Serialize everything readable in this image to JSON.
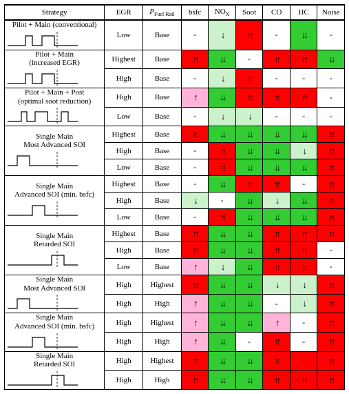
{
  "colors": {
    "red": "#ff0000",
    "green": "#33cc33",
    "ltgreen": "#ccf2cc",
    "pink": "#ffb3d9",
    "white": "#ffffff"
  },
  "headers": [
    "Strategy",
    "EGR",
    "P_FuelRail",
    "bsfc",
    "NOx",
    "Soot",
    "CO",
    "HC",
    "Noise"
  ],
  "groups": [
    {
      "label": "Pilot + Main (conventional)",
      "pulses": "pm",
      "rows": [
        {
          "egr": "Low",
          "prail": "Base",
          "cells": [
            [
              "-",
              "white"
            ],
            [
              "d1",
              "ltgreen"
            ],
            [
              "u2",
              "red"
            ],
            [
              "-",
              "white"
            ],
            [
              "d2",
              "green"
            ],
            [
              "-",
              "white"
            ]
          ]
        }
      ]
    },
    {
      "label": "Pilot + Main\n(increased EGR)",
      "pulses": "pm",
      "rows": [
        {
          "egr": "Highest",
          "prail": "Base",
          "cells": [
            [
              "u2",
              "red"
            ],
            [
              "d2",
              "green"
            ],
            [
              "-",
              "white"
            ],
            [
              "u2",
              "red"
            ],
            [
              "u2",
              "red"
            ],
            [
              "d2",
              "green"
            ]
          ]
        },
        {
          "egr": "High",
          "prail": "Base",
          "cells": [
            [
              "-",
              "white"
            ],
            [
              "d1",
              "ltgreen"
            ],
            [
              "u2",
              "red"
            ],
            [
              "-",
              "white"
            ],
            [
              "-",
              "white"
            ],
            [
              "-",
              "white"
            ]
          ]
        }
      ]
    },
    {
      "label": "Pilot + Main + Post\n(optimal soot reduction)",
      "pulses": "pmp",
      "rows": [
        {
          "egr": "High",
          "prail": "Base",
          "cells": [
            [
              "u1",
              "pink"
            ],
            [
              "d2",
              "green"
            ],
            [
              "u2",
              "red"
            ],
            [
              "u2",
              "red"
            ],
            [
              "u2",
              "red"
            ],
            [
              "-",
              "white"
            ]
          ]
        },
        {
          "egr": "Low",
          "prail": "Base",
          "cells": [
            [
              "-",
              "white"
            ],
            [
              "d1",
              "ltgreen"
            ],
            [
              "d1",
              "ltgreen"
            ],
            [
              "-",
              "white"
            ],
            [
              "-",
              "white"
            ],
            [
              "-",
              "white"
            ]
          ]
        }
      ]
    },
    {
      "label": "Single Main\nMost Advanced SOI",
      "pulses": "sm-adv",
      "rows": [
        {
          "egr": "Highest",
          "prail": "Base",
          "cells": [
            [
              "u2",
              "red"
            ],
            [
              "d2",
              "green"
            ],
            [
              "d2",
              "green"
            ],
            [
              "d2",
              "green"
            ],
            [
              "d2",
              "green"
            ],
            [
              "u2",
              "red"
            ]
          ]
        },
        {
          "egr": "High",
          "prail": "Base",
          "cells": [
            [
              "-",
              "white"
            ],
            [
              "u2",
              "red"
            ],
            [
              "d2",
              "green"
            ],
            [
              "d2",
              "green"
            ],
            [
              "d1",
              "ltgreen"
            ],
            [
              "u2",
              "red"
            ]
          ]
        },
        {
          "egr": "Low",
          "prail": "Base",
          "cells": [
            [
              "-",
              "white"
            ],
            [
              "u2",
              "red"
            ],
            [
              "d2",
              "green"
            ],
            [
              "d2",
              "green"
            ],
            [
              "d2",
              "green"
            ],
            [
              "u2",
              "red"
            ]
          ]
        }
      ]
    },
    {
      "label": "Single Main\nAdvanced SOI (min. bsfc)",
      "pulses": "sm-mid",
      "rows": [
        {
          "egr": "Highest",
          "prail": "Base",
          "cells": [
            [
              "-",
              "white"
            ],
            [
              "d2",
              "green"
            ],
            [
              "u2",
              "red"
            ],
            [
              "u2",
              "red"
            ],
            [
              "-",
              "white"
            ],
            [
              "u2",
              "red"
            ]
          ]
        },
        {
          "egr": "High",
          "prail": "Base",
          "cells": [
            [
              "d1",
              "ltgreen"
            ],
            [
              "-",
              "white"
            ],
            [
              "d2",
              "green"
            ],
            [
              "d1",
              "ltgreen"
            ],
            [
              "d2",
              "green"
            ],
            [
              "u2",
              "red"
            ]
          ]
        },
        {
          "egr": "Low",
          "prail": "Base",
          "cells": [
            [
              "-",
              "white"
            ],
            [
              "u2",
              "red"
            ],
            [
              "d2",
              "green"
            ],
            [
              "d2",
              "green"
            ],
            [
              "d2",
              "green"
            ],
            [
              "u2",
              "red"
            ]
          ]
        }
      ]
    },
    {
      "label": "Single Main\nRetarded SOI",
      "pulses": "sm-ret",
      "rows": [
        {
          "egr": "Highest",
          "prail": "Base",
          "cells": [
            [
              "u2",
              "red"
            ],
            [
              "d2",
              "green"
            ],
            [
              "d2",
              "green"
            ],
            [
              "u2",
              "red"
            ],
            [
              "u2",
              "red"
            ],
            [
              "u2",
              "red"
            ]
          ]
        },
        {
          "egr": "High",
          "prail": "Base",
          "cells": [
            [
              "u2",
              "red"
            ],
            [
              "d2",
              "green"
            ],
            [
              "d2",
              "green"
            ],
            [
              "u2",
              "red"
            ],
            [
              "u2",
              "red"
            ],
            [
              "-",
              "white"
            ]
          ]
        },
        {
          "egr": "Low",
          "prail": "Base",
          "cells": [
            [
              "u1",
              "pink"
            ],
            [
              "d1",
              "ltgreen"
            ],
            [
              "d2",
              "green"
            ],
            [
              "u2",
              "red"
            ],
            [
              "u2",
              "red"
            ],
            [
              "-",
              "white"
            ]
          ]
        }
      ]
    },
    {
      "label": "Single Main\nMost Advanced SOI",
      "pulses": "sm-adv",
      "rows": [
        {
          "egr": "High",
          "prail": "Highest",
          "cells": [
            [
              "u2",
              "red"
            ],
            [
              "d2",
              "green"
            ],
            [
              "d2",
              "green"
            ],
            [
              "d1",
              "ltgreen"
            ],
            [
              "d1",
              "ltgreen"
            ],
            [
              "u2",
              "red"
            ]
          ]
        },
        {
          "egr": "High",
          "prail": "High",
          "cells": [
            [
              "u1",
              "pink"
            ],
            [
              "d2",
              "green"
            ],
            [
              "d2",
              "green"
            ],
            [
              "-",
              "white"
            ],
            [
              "d1",
              "ltgreen"
            ],
            [
              "u2",
              "red"
            ]
          ]
        }
      ]
    },
    {
      "label": "Single Main\nAdvanced SOI (min. bsfc)",
      "pulses": "sm-mid",
      "rows": [
        {
          "egr": "High",
          "prail": "Highest",
          "cells": [
            [
              "u1",
              "pink"
            ],
            [
              "d2",
              "green"
            ],
            [
              "d2",
              "green"
            ],
            [
              "u1",
              "pink"
            ],
            [
              "-",
              "white"
            ],
            [
              "u2",
              "red"
            ]
          ]
        },
        {
          "egr": "High",
          "prail": "High",
          "cells": [
            [
              "u1",
              "pink"
            ],
            [
              "d2",
              "green"
            ],
            [
              "-",
              "white"
            ],
            [
              "u2",
              "red"
            ],
            [
              "-",
              "white"
            ],
            [
              "u2",
              "red"
            ]
          ]
        }
      ]
    },
    {
      "label": "Single Main\nRetarded SOI",
      "pulses": "sm-ret",
      "rows": [
        {
          "egr": "High",
          "prail": "Highest",
          "cells": [
            [
              "u2",
              "red"
            ],
            [
              "d2",
              "green"
            ],
            [
              "d2",
              "green"
            ],
            [
              "u2",
              "red"
            ],
            [
              "u2",
              "red"
            ],
            [
              "u2",
              "red"
            ]
          ]
        },
        {
          "egr": "High",
          "prail": "High",
          "cells": [
            [
              "u2",
              "red"
            ],
            [
              "d2",
              "green"
            ],
            [
              "d2",
              "green"
            ],
            [
              "u2",
              "red"
            ],
            [
              "u2",
              "red"
            ],
            [
              "u2",
              "red"
            ]
          ]
        }
      ]
    }
  ]
}
